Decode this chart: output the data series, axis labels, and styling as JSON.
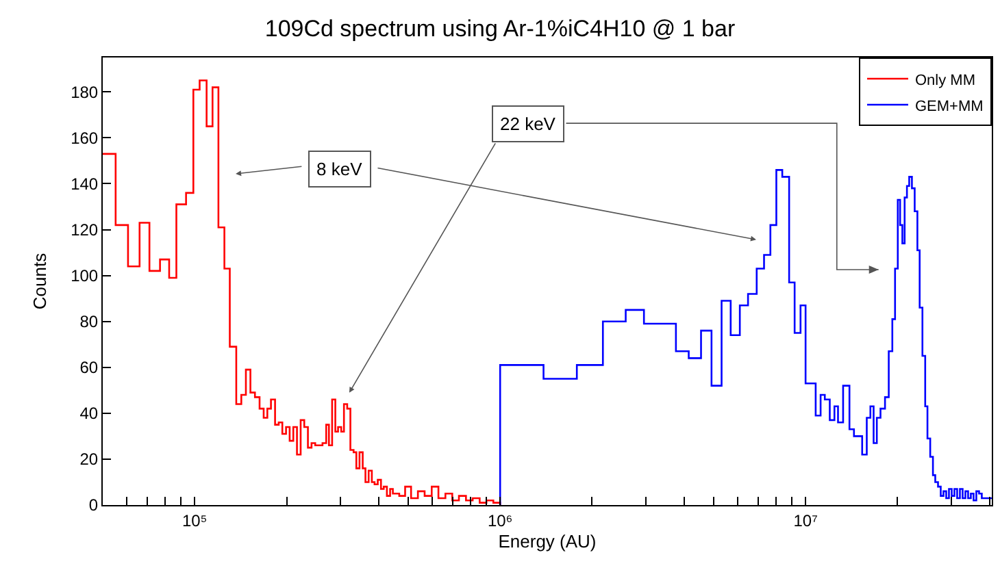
{
  "chart_data": {
    "type": "step",
    "title": "109Cd spectrum using Ar-1%iC4H10 @ 1 bar",
    "xlabel": "Energy (AU)",
    "ylabel": "Counts",
    "log": "x",
    "grid": false,
    "legend": "top right",
    "marker": "none",
    "line_style": "solid",
    "xlim": [
      50000,
      40700000
    ],
    "xticks": [
      {
        "value": 60000,
        "label": null
      },
      {
        "value": 70000,
        "label": null
      },
      {
        "value": 80000,
        "label": null
      },
      {
        "value": 90000,
        "label": null
      },
      {
        "value": 100000,
        "label": "10⁵"
      },
      {
        "value": 200000,
        "label": null
      },
      {
        "value": 300000,
        "label": null
      },
      {
        "value": 400000,
        "label": null
      },
      {
        "value": 500000,
        "label": null
      },
      {
        "value": 600000,
        "label": null
      },
      {
        "value": 700000,
        "label": null
      },
      {
        "value": 800000,
        "label": null
      },
      {
        "value": 900000,
        "label": null
      },
      {
        "value": 1000000,
        "label": "10⁶"
      },
      {
        "value": 2000000,
        "label": null
      },
      {
        "value": 3000000,
        "label": null
      },
      {
        "value": 4000000,
        "label": null
      },
      {
        "value": 5000000,
        "label": null
      },
      {
        "value": 6000000,
        "label": null
      },
      {
        "value": 7000000,
        "label": null
      },
      {
        "value": 8000000,
        "label": null
      },
      {
        "value": 9000000,
        "label": null
      },
      {
        "value": 10000000,
        "label": "10⁷"
      },
      {
        "value": 20000000,
        "label": null
      },
      {
        "value": 30000000,
        "label": null
      },
      {
        "value": 40000000,
        "label": null
      }
    ],
    "ylim": [
      0,
      195
    ],
    "yticks": [
      0,
      20,
      40,
      60,
      80,
      100,
      120,
      140,
      160,
      180
    ],
    "annotations": [
      "8 keV",
      "22 keV"
    ],
    "series": [
      {
        "name": "Only MM",
        "color": "#ff0000",
        "x": [
          50000,
          55100,
          60500,
          66000,
          71100,
          77000,
          82500,
          87100,
          93700,
          99000,
          103800,
          109400,
          114400,
          119600,
          125100,
          130300,
          136800,
          142100,
          147100,
          152200,
          157500,
          163100,
          168200,
          172900,
          177700,
          183300,
          188400,
          193600,
          199100,
          204600,
          210300,
          216200,
          222300,
          228400,
          234800,
          241300,
          248100,
          255000,
          262100,
          269500,
          275100,
          281800,
          288700,
          294700,
          301800,
          308100,
          315700,
          323400,
          331300,
          338200,
          346400,
          354900,
          362300,
          371100,
          380200,
          388100,
          397500,
          407300,
          415800,
          425900,
          436300,
          445400,
          456300,
          467400,
          476900,
          488600,
          511000,
          538000,
          566000,
          597000,
          628000,
          662000,
          697000,
          733000,
          773000,
          813000,
          857000,
          902000,
          950000,
          1000000
        ],
        "values": [
          153,
          122,
          104,
          123,
          102,
          107,
          99,
          131,
          136,
          181,
          185,
          165,
          182,
          121,
          103,
          69,
          44,
          48,
          59,
          49,
          47,
          42,
          38,
          42,
          46,
          35,
          36,
          31,
          34,
          28,
          34,
          22,
          37,
          34,
          25,
          27,
          26,
          26,
          27,
          35,
          26,
          46,
          32,
          34,
          32,
          44,
          42,
          24,
          23,
          16,
          23,
          16,
          10,
          15,
          10,
          9,
          11,
          7,
          8,
          4,
          7,
          5,
          5,
          4,
          4,
          8,
          3,
          6,
          4,
          8,
          3,
          5,
          2,
          4,
          2,
          3,
          1,
          2,
          1,
          0
        ]
      },
      {
        "name": "GEM+MM",
        "color": "#0000ff",
        "x": [
          1000000,
          1000000,
          1387000,
          1783000,
          2170000,
          2577000,
          2957000,
          3763000,
          4144000,
          4547000,
          4921000,
          5309000,
          5686000,
          6092000,
          6480000,
          6918000,
          7311000,
          7670000,
          8022000,
          8389000,
          8834000,
          9208000,
          9627000,
          10000000,
          10790000,
          11200000,
          11560000,
          12000000,
          12430000,
          12770000,
          13270000,
          13920000,
          14400000,
          15320000,
          15860000,
          16300000,
          16700000,
          17110000,
          17590000,
          18200000,
          18720000,
          19230000,
          19630000,
          20040000,
          20390000,
          20740000,
          21100000,
          21470000,
          21840000,
          22290000,
          22760000,
          23230000,
          23630000,
          24130000,
          24640000,
          25060000,
          25590000,
          26120000,
          26580000,
          27140000,
          27700000,
          28280000,
          28870000,
          29470000,
          30090000,
          30710000,
          31350000,
          32010000,
          32670000,
          33360000,
          34050000,
          34760000,
          35480000,
          36220000,
          36980000,
          37750000,
          39070000,
          40700000
        ],
        "values": [
          0,
          61,
          55,
          61,
          80,
          85,
          79,
          67,
          64,
          76,
          52,
          89,
          74,
          87,
          92,
          103,
          109,
          122,
          146,
          143,
          97,
          75,
          87,
          53,
          39,
          48,
          46,
          37,
          43,
          36,
          52,
          33,
          30,
          22,
          38,
          43,
          27,
          38,
          42,
          47,
          67,
          81,
          103,
          133,
          122,
          114,
          134,
          139,
          143,
          138,
          128,
          111,
          86,
          65,
          43,
          29,
          21,
          13,
          10,
          8,
          4,
          6,
          3,
          7,
          4,
          7,
          3,
          7,
          3,
          6,
          3,
          5,
          2,
          6,
          5,
          3,
          3,
          3
        ]
      }
    ]
  }
}
